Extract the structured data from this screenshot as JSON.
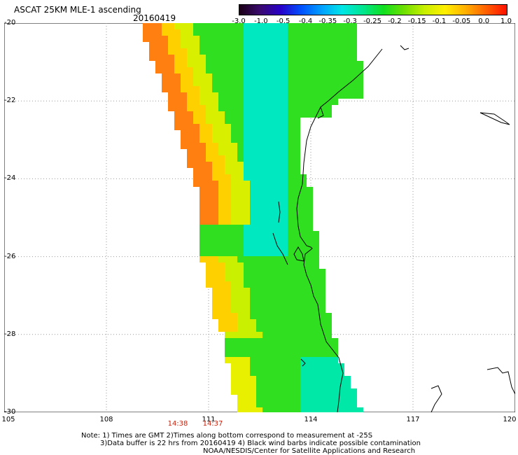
{
  "header": {
    "title": "ASCAT 25KM MLE-1 ascending",
    "date": "20160419"
  },
  "colorbar": {
    "colors": [
      "#1a0014",
      "#3a0a6e",
      "#2800c8",
      "#0050ff",
      "#00a0ff",
      "#00e6e6",
      "#00e690",
      "#10e020",
      "#6ee000",
      "#c8f000",
      "#fff000",
      "#ffb000",
      "#ff6000",
      "#ff1000"
    ],
    "ticks": [
      "-3.0",
      "-1.0",
      "-0.5",
      "-0.4",
      "-0.35",
      "-0.3",
      "-0.25",
      "-0.2",
      "-0.15",
      "-0.1",
      "-0.05",
      "0.0",
      "1.0"
    ]
  },
  "axes": {
    "lat_labels": [
      "-20",
      "-22",
      "-24",
      "-26",
      "-28",
      "-30"
    ],
    "lon_labels": [
      "105",
      "108",
      "111",
      "114",
      "117",
      "120"
    ]
  },
  "pass_times": [
    "14:38",
    "14:37"
  ],
  "notes": {
    "line1": "Note: 1) Times are GMT 2)Times along bottom correspond to measurement at -25S",
    "line2": "3)Data buffer is 22 hrs from 20160419 4) Black wind barbs indicate possible contamination",
    "line3": "NOAA/NESDIS/Center for Satellite Applications and Research"
  },
  "colors": {
    "pass_time": "#c8200a",
    "grid": "#999999",
    "coast": "#000000"
  }
}
